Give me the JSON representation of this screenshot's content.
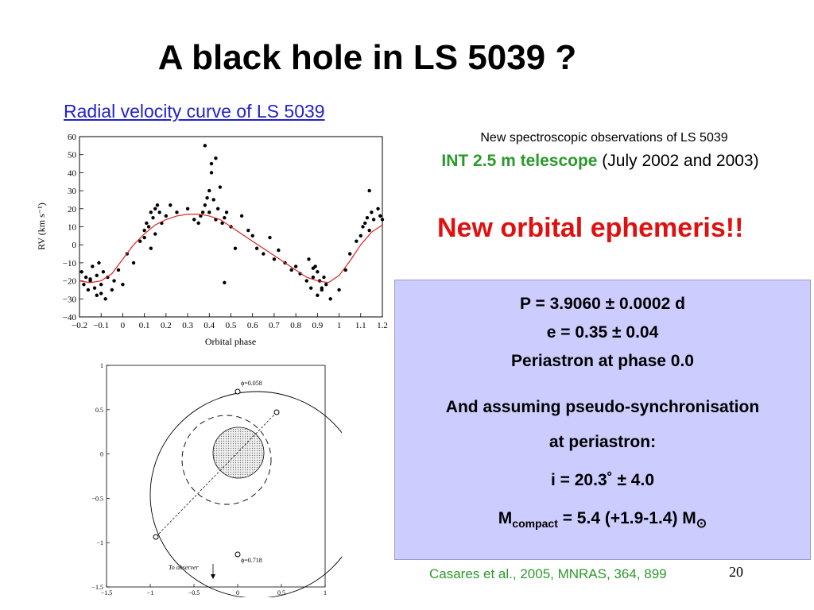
{
  "title": "A black hole in LS 5039 ?",
  "rv_link": "Radial velocity curve of LS 5039",
  "observations": {
    "line1": "New spectroscopic observations of LS 5039",
    "telescope": "INT 2.5 m telescope",
    "dates": " (July 2002 and 2003)"
  },
  "ephemeris_heading": "New orbital ephemeris!!",
  "params": {
    "period": "P = 3.9060 ± 0.0002 d",
    "eccentricity": "e = 0.35 ± 0.04",
    "periastron": "Periastron at phase 0.0",
    "assuming1": "And assuming pseudo-synchronisation",
    "assuming2": "at periastron:",
    "inclination": "i = 20.3˚ ± 4.0",
    "mass_prefix": "M",
    "mass_sub": "compact",
    "mass_value": " = 5.4 (+1.9-1.4) M",
    "mass_sun_sub": "⊙"
  },
  "credit": "Casares et al., 2005, MNRAS, 364, 899",
  "page_number": "20",
  "colors": {
    "link": "#2222cc",
    "green": "#2a9a2a",
    "red": "#e01010",
    "box": "#ccccff",
    "curve": "#dd2222"
  },
  "chart_data": [
    {
      "type": "scatter",
      "xlabel": "Orbital phase",
      "ylabel": "RV (km s⁻¹)",
      "xlim": [
        -0.2,
        1.2
      ],
      "ylim": [
        -40,
        60
      ],
      "xticks": [
        "−0.2",
        "−0.1",
        "0",
        "0.1",
        "0.2",
        "0.3",
        "0.4",
        "0.5",
        "0.6",
        "0.7",
        "0.8",
        "0.9",
        "1",
        "1.1",
        "1.2"
      ],
      "yticks": [
        "−40",
        "−30",
        "−20",
        "−10",
        "0",
        "10",
        "20",
        "30",
        "40",
        "50",
        "60"
      ],
      "fit_curve": {
        "color": "#dd2222",
        "x": [
          -0.2,
          -0.15,
          -0.1,
          -0.05,
          0,
          0.05,
          0.1,
          0.15,
          0.2,
          0.25,
          0.3,
          0.35,
          0.4,
          0.45,
          0.5,
          0.55,
          0.6,
          0.65,
          0.7,
          0.75,
          0.8,
          0.85,
          0.9,
          0.95,
          1,
          1.05,
          1.1,
          1.15,
          1.2
        ],
        "y": [
          -20,
          -21,
          -20,
          -16,
          -8,
          0,
          6,
          11,
          14,
          16,
          17,
          17,
          16,
          14,
          10,
          6,
          2,
          -2,
          -6,
          -10,
          -14,
          -18,
          -20,
          -21,
          -17,
          -9,
          0,
          7,
          11
        ]
      },
      "points": {
        "x": [
          -0.19,
          -0.18,
          -0.17,
          -0.16,
          -0.15,
          -0.14,
          -0.13,
          -0.12,
          -0.12,
          -0.11,
          -0.1,
          -0.09,
          -0.08,
          -0.07,
          -0.05,
          -0.04,
          -0.02,
          0.0,
          0.02,
          0.05,
          0.08,
          0.1,
          0.1,
          0.11,
          0.12,
          0.13,
          0.14,
          0.15,
          0.15,
          0.16,
          0.17,
          0.18,
          0.2,
          0.22,
          0.25,
          0.3,
          0.33,
          0.35,
          0.36,
          0.37,
          0.38,
          0.39,
          0.4,
          0.4,
          0.41,
          0.42,
          0.43,
          0.44,
          0.45,
          0.46,
          0.47,
          0.48,
          0.5,
          0.52,
          0.55,
          0.58,
          0.6,
          0.62,
          0.65,
          0.68,
          0.7,
          0.72,
          0.75,
          0.78,
          0.8,
          0.82,
          0.85,
          0.86,
          0.87,
          0.88,
          0.89,
          0.9,
          0.9,
          0.91,
          0.92,
          0.93,
          0.94,
          0.96,
          1.0,
          1.03,
          1.05,
          1.08,
          1.1,
          1.11,
          1.12,
          1.13,
          1.14,
          1.15,
          1.16,
          1.18,
          1.19,
          1.2,
          -0.15,
          -0.1,
          0.13,
          0.38,
          0.41,
          0.43,
          0.47,
          0.88,
          0.92,
          1.14
        ],
        "y": [
          -15,
          -22,
          -18,
          -25,
          -20,
          -12,
          -24,
          -17,
          -28,
          -10,
          -22,
          -15,
          -30,
          -18,
          -25,
          -20,
          -14,
          -22,
          -5,
          -10,
          2,
          8,
          4,
          12,
          10,
          18,
          15,
          6,
          20,
          22,
          18,
          12,
          16,
          22,
          18,
          20,
          14,
          12,
          16,
          18,
          22,
          26,
          30,
          18,
          40,
          25,
          14,
          20,
          32,
          12,
          15,
          18,
          10,
          -2,
          16,
          8,
          5,
          -2,
          -5,
          4,
          -8,
          -3,
          -10,
          -14,
          -12,
          -16,
          -20,
          -8,
          -24,
          -18,
          -12,
          -15,
          -28,
          -20,
          -25,
          -18,
          -22,
          -30,
          -25,
          -14,
          -5,
          2,
          5,
          10,
          12,
          15,
          8,
          18,
          14,
          20,
          16,
          14,
          -19,
          -27,
          -2,
          55,
          45,
          48,
          -21,
          -13,
          -24,
          30
        ]
      }
    },
    {
      "type": "diagram",
      "xlim": [
        -1.5,
        1
      ],
      "ylim": [
        -1.5,
        1
      ],
      "xticks": [
        "−1.5",
        "−1",
        "−0.5",
        "0",
        "0.5",
        "1"
      ],
      "yticks": [
        "1",
        "0.5",
        "0",
        "−0.5",
        "−1",
        "−1.5"
      ],
      "labels": {
        "phase_a": "ϕ=0.058",
        "phase_b": "ϕ=0.718",
        "observer": "To observer"
      }
    }
  ]
}
